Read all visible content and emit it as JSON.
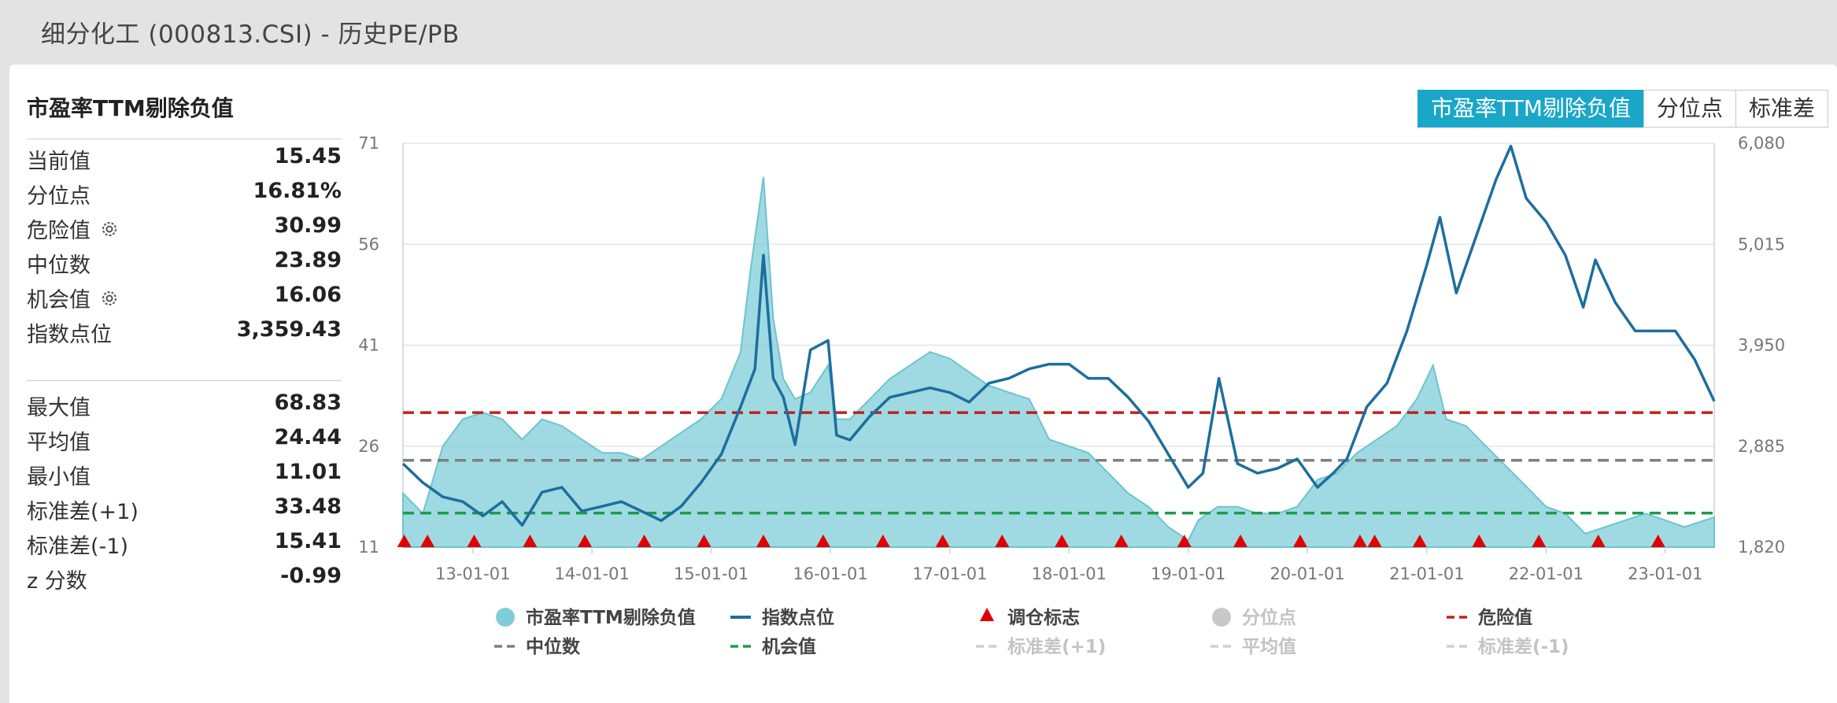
{
  "header": {
    "title": "细分化工 (000813.CSI) - 历史PE/PB"
  },
  "sidebar": {
    "title": "市盈率TTM剔除负值",
    "stats": [
      {
        "label": "当前值",
        "value": "15.45"
      },
      {
        "label": "分位点",
        "value": "16.81%"
      },
      {
        "label": "危险值",
        "value": "30.99",
        "icon": "gear-icon"
      },
      {
        "label": "中位数",
        "value": "23.89"
      },
      {
        "label": "机会值",
        "value": "16.06",
        "icon": "gear-icon"
      },
      {
        "label": "指数点位",
        "value": "3,359.43"
      }
    ],
    "stats2": [
      {
        "label": "最大值",
        "value": "68.83"
      },
      {
        "label": "平均值",
        "value": "24.44"
      },
      {
        "label": "最小值",
        "value": "11.01"
      },
      {
        "label": "标准差(+1)",
        "value": "33.48"
      },
      {
        "label": "标准差(-1)",
        "value": "15.41"
      },
      {
        "label": "z 分数",
        "value": "-0.99"
      }
    ]
  },
  "tabs": [
    {
      "label": "市盈率TTM剔除负值",
      "active": true
    },
    {
      "label": "分位点",
      "active": false
    },
    {
      "label": "标准差",
      "active": false
    }
  ],
  "chart_data": {
    "type": "area",
    "left_axis": {
      "ticks": [
        "71",
        "56",
        "41",
        "26",
        "11"
      ],
      "range": [
        11,
        71
      ]
    },
    "right_axis": {
      "ticks": [
        "6,080",
        "5,015",
        "3,950",
        "2,885",
        "1,820"
      ],
      "range": [
        1820,
        6080
      ]
    },
    "x_ticks": [
      "13-01-01",
      "14-01-01",
      "15-01-01",
      "16-01-01",
      "17-01-01",
      "18-01-01",
      "19-01-01",
      "20-01-01",
      "21-01-01",
      "22-01-01",
      "23-01-01"
    ],
    "x_range": [
      "2012-06-01",
      "2023-05-31"
    ],
    "pe_series": {
      "name": "市盈率TTM剔除负值",
      "color": "#7fcdd8",
      "dates": [
        "2012-06-01",
        "2012-08-01",
        "2012-10-01",
        "2012-12-01",
        "2013-02-01",
        "2013-04-01",
        "2013-06-01",
        "2013-08-01",
        "2013-10-01",
        "2013-12-01",
        "2014-02-01",
        "2014-04-01",
        "2014-06-01",
        "2014-08-01",
        "2014-10-01",
        "2014-12-01",
        "2015-02-01",
        "2015-04-01",
        "2015-05-01",
        "2015-06-10",
        "2015-07-10",
        "2015-08-10",
        "2015-09-15",
        "2015-11-01",
        "2015-12-25",
        "2016-01-20",
        "2016-03-01",
        "2016-05-01",
        "2016-07-01",
        "2016-09-01",
        "2016-11-01",
        "2017-01-01",
        "2017-03-01",
        "2017-05-01",
        "2017-07-01",
        "2017-09-01",
        "2017-11-01",
        "2018-01-01",
        "2018-03-01",
        "2018-05-01",
        "2018-07-01",
        "2018-09-01",
        "2018-11-01",
        "2019-01-01",
        "2019-02-01",
        "2019-04-01",
        "2019-06-01",
        "2019-08-01",
        "2019-10-01",
        "2019-12-01",
        "2020-02-01",
        "2020-04-01",
        "2020-06-01",
        "2020-08-01",
        "2020-10-01",
        "2020-12-01",
        "2021-01-20",
        "2021-03-01",
        "2021-05-01",
        "2021-07-01",
        "2021-09-01",
        "2021-11-01",
        "2022-01-01",
        "2022-03-01",
        "2022-05-01",
        "2022-07-01",
        "2022-09-01",
        "2022-11-01",
        "2023-01-01",
        "2023-03-01",
        "2023-05-31"
      ],
      "values": [
        19,
        16,
        26,
        30,
        31,
        30,
        27,
        30,
        29,
        27,
        25,
        25,
        24,
        26,
        28,
        30,
        33,
        40,
        52,
        66,
        45,
        36,
        33,
        34,
        38,
        30,
        30,
        33,
        36,
        38,
        40,
        39,
        37,
        35,
        34,
        33,
        27,
        26,
        25,
        22,
        19,
        17,
        14,
        12,
        15,
        17,
        17,
        16,
        16,
        17,
        21,
        22,
        25,
        27,
        29,
        33,
        38,
        30,
        29,
        26,
        23,
        20,
        17,
        16,
        13,
        14,
        15,
        16,
        15,
        14,
        15.45
      ]
    },
    "index_series": {
      "name": "指数点位",
      "color": "#1d6e9e",
      "dates": [
        "2012-06-01",
        "2012-08-01",
        "2012-10-01",
        "2012-12-01",
        "2013-02-01",
        "2013-04-01",
        "2013-06-01",
        "2013-08-01",
        "2013-10-01",
        "2013-12-01",
        "2014-02-01",
        "2014-04-01",
        "2014-06-01",
        "2014-08-01",
        "2014-10-01",
        "2014-12-01",
        "2015-02-01",
        "2015-04-01",
        "2015-05-15",
        "2015-06-10",
        "2015-07-10",
        "2015-08-10",
        "2015-09-15",
        "2015-11-01",
        "2015-12-25",
        "2016-01-20",
        "2016-03-01",
        "2016-05-01",
        "2016-07-01",
        "2016-09-01",
        "2016-11-01",
        "2017-01-01",
        "2017-03-01",
        "2017-05-01",
        "2017-07-01",
        "2017-09-01",
        "2017-11-01",
        "2018-01-01",
        "2018-03-01",
        "2018-05-01",
        "2018-07-01",
        "2018-09-01",
        "2018-11-01",
        "2019-01-01",
        "2019-02-15",
        "2019-04-05",
        "2019-06-01",
        "2019-08-01",
        "2019-10-01",
        "2019-12-01",
        "2020-02-01",
        "2020-03-20",
        "2020-05-01",
        "2020-07-01",
        "2020-09-01",
        "2020-11-01",
        "2021-01-01",
        "2021-02-10",
        "2021-04-01",
        "2021-06-01",
        "2021-08-01",
        "2021-09-15",
        "2021-11-01",
        "2022-01-01",
        "2022-03-01",
        "2022-04-25",
        "2022-06-01",
        "2022-08-01",
        "2022-10-01",
        "2022-12-01",
        "2023-02-01",
        "2023-04-01",
        "2023-05-31"
      ],
      "values": [
        2700,
        2500,
        2350,
        2300,
        2150,
        2300,
        2050,
        2400,
        2450,
        2200,
        2250,
        2300,
        2200,
        2100,
        2250,
        2500,
        2800,
        3300,
        3700,
        4900,
        3600,
        3400,
        2900,
        3900,
        4000,
        3000,
        2950,
        3200,
        3400,
        3450,
        3500,
        3450,
        3350,
        3550,
        3600,
        3700,
        3750,
        3750,
        3600,
        3600,
        3400,
        3150,
        2800,
        2450,
        2600,
        3600,
        2700,
        2600,
        2650,
        2750,
        2450,
        2600,
        2750,
        3300,
        3550,
        4100,
        4800,
        5300,
        4500,
        5100,
        5700,
        6050,
        5500,
        5250,
        4900,
        4350,
        4850,
        4400,
        4100,
        4100,
        4100,
        3800,
        3359.43
      ]
    },
    "danger": {
      "name": "危险值",
      "value": 30.99,
      "color": "#c0201e"
    },
    "median": {
      "name": "中位数",
      "value": 23.89,
      "color": "#7f7f7f"
    },
    "opportunity": {
      "name": "机会值",
      "value": 16.06,
      "color": "#1e9a4c"
    },
    "markers": {
      "name": "调仓标志",
      "color": "#e30000",
      "dates": [
        "2012-06-05",
        "2012-08-15",
        "2013-01-05",
        "2013-06-25",
        "2013-12-10",
        "2014-06-10",
        "2014-12-10",
        "2015-06-10",
        "2015-12-10",
        "2016-06-10",
        "2016-12-10",
        "2017-06-10",
        "2017-12-10",
        "2018-06-10",
        "2018-12-20",
        "2019-06-10",
        "2019-12-10",
        "2020-06-10",
        "2020-07-25",
        "2020-12-10",
        "2021-06-10",
        "2021-12-10",
        "2022-06-10",
        "2022-12-10"
      ]
    },
    "legend": [
      {
        "label": "市盈率TTM剔除负值",
        "kind": "dot",
        "color": "#7fcdd8",
        "enabled": true
      },
      {
        "label": "指数点位",
        "kind": "line",
        "color": "#1d6e9e",
        "enabled": true
      },
      {
        "label": "调仓标志",
        "kind": "triangle",
        "color": "#e30000",
        "enabled": true
      },
      {
        "label": "分位点",
        "kind": "dot",
        "color": "#c8c8c8",
        "enabled": false
      },
      {
        "label": "危险值",
        "kind": "dash",
        "color": "#c0201e",
        "enabled": true
      },
      {
        "label": "中位数",
        "kind": "dash",
        "color": "#7f7f7f",
        "enabled": true
      },
      {
        "label": "机会值",
        "kind": "dash",
        "color": "#1e9a4c",
        "enabled": true
      },
      {
        "label": "标准差(+1)",
        "kind": "dash",
        "color": "#cfcfcf",
        "enabled": false
      },
      {
        "label": "平均值",
        "kind": "dash",
        "color": "#cfcfcf",
        "enabled": false
      },
      {
        "label": "标准差(-1)",
        "kind": "dash",
        "color": "#cfcfcf",
        "enabled": false
      }
    ]
  }
}
